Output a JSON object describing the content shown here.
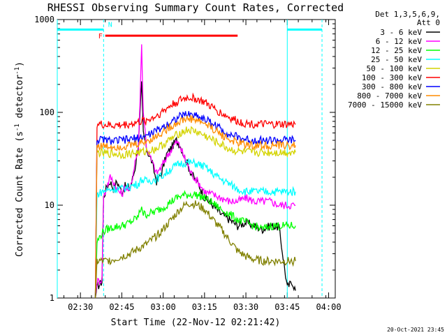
{
  "chart_data": {
    "type": "line",
    "title": "RHESSI Observing Summary Count Rates, Corrected",
    "xlabel": "Start Time (22-Nov-12 02:21:42)",
    "ylabel_main": "Corrected Count Rate (s",
    "ylabel_sup1": "-1",
    "ylabel_mid": " detector",
    "ylabel_sup2": "-1",
    "ylabel_end": ")",
    "yscale": "log",
    "ylim": [
      1,
      1000
    ],
    "xlim": [
      2.36,
      4.04
    ],
    "y_ticks": [
      {
        "v": 1,
        "label": "1"
      },
      {
        "v": 10,
        "label": "10"
      },
      {
        "v": 100,
        "label": "100"
      },
      {
        "v": 1000,
        "label": "1000"
      }
    ],
    "x_ticks": [
      {
        "v": 2.5,
        "label": "02:30"
      },
      {
        "v": 2.75,
        "label": "02:45"
      },
      {
        "v": 3.0,
        "label": "03:00"
      },
      {
        "v": 3.25,
        "label": "03:15"
      },
      {
        "v": 3.5,
        "label": "03:30"
      },
      {
        "v": 3.75,
        "label": "03:45"
      },
      {
        "v": 4.0,
        "label": "04:00"
      }
    ],
    "legend_header": [
      "Det 1,3,5,6,9,",
      "Att 0"
    ],
    "legend_position": "top-right",
    "series": [
      {
        "name": "3 - 6 keV",
        "color": "#000000",
        "points": [
          [
            2.59,
            1.0
          ],
          [
            2.6,
            1.3
          ],
          [
            2.63,
            1.5
          ],
          [
            2.64,
            12
          ],
          [
            2.66,
            16
          ],
          [
            2.68,
            18
          ],
          [
            2.7,
            15
          ],
          [
            2.72,
            18
          ],
          [
            2.75,
            14
          ],
          [
            2.77,
            16
          ],
          [
            2.8,
            15
          ],
          [
            2.83,
            25
          ],
          [
            2.85,
            45
          ],
          [
            2.87,
            200
          ],
          [
            2.88,
            60
          ],
          [
            2.9,
            40
          ],
          [
            2.93,
            30
          ],
          [
            2.96,
            18
          ],
          [
            2.99,
            22
          ],
          [
            3.02,
            35
          ],
          [
            3.05,
            42
          ],
          [
            3.08,
            50
          ],
          [
            3.1,
            45
          ],
          [
            3.13,
            33
          ],
          [
            3.17,
            22
          ],
          [
            3.22,
            16
          ],
          [
            3.25,
            12
          ],
          [
            3.3,
            10
          ],
          [
            3.35,
            8
          ],
          [
            3.4,
            7
          ],
          [
            3.45,
            6
          ],
          [
            3.5,
            6.5
          ],
          [
            3.55,
            6
          ],
          [
            3.6,
            5.5
          ],
          [
            3.65,
            6
          ],
          [
            3.7,
            5.8
          ],
          [
            3.75,
            1.3
          ],
          [
            3.78,
            1.5
          ],
          [
            3.8,
            1.2
          ]
        ]
      },
      {
        "name": "6 - 12 keV",
        "color": "#ff00ff",
        "points": [
          [
            2.59,
            1.0
          ],
          [
            2.6,
            1.5
          ],
          [
            2.63,
            1.6
          ],
          [
            2.64,
            12
          ],
          [
            2.66,
            16
          ],
          [
            2.68,
            20
          ],
          [
            2.7,
            18
          ],
          [
            2.72,
            15
          ],
          [
            2.75,
            13
          ],
          [
            2.77,
            16
          ],
          [
            2.8,
            14
          ],
          [
            2.83,
            30
          ],
          [
            2.85,
            38
          ],
          [
            2.87,
            530
          ],
          [
            2.88,
            100
          ],
          [
            2.9,
            42
          ],
          [
            2.93,
            30
          ],
          [
            2.96,
            22
          ],
          [
            2.99,
            26
          ],
          [
            3.02,
            33
          ],
          [
            3.05,
            40
          ],
          [
            3.08,
            48
          ],
          [
            3.1,
            44
          ],
          [
            3.13,
            32
          ],
          [
            3.17,
            22
          ],
          [
            3.22,
            17
          ],
          [
            3.25,
            14
          ],
          [
            3.3,
            13
          ],
          [
            3.35,
            12
          ],
          [
            3.4,
            11
          ],
          [
            3.45,
            11
          ],
          [
            3.5,
            12
          ],
          [
            3.55,
            11
          ],
          [
            3.6,
            11
          ],
          [
            3.65,
            11
          ],
          [
            3.7,
            10
          ],
          [
            3.8,
            10
          ]
        ]
      },
      {
        "name": "12 - 25 keV",
        "color": "#00ff00",
        "points": [
          [
            2.59,
            1.0
          ],
          [
            2.6,
            4
          ],
          [
            2.63,
            5
          ],
          [
            2.64,
            5.2
          ],
          [
            2.66,
            5.5
          ],
          [
            2.7,
            5.8
          ],
          [
            2.75,
            6
          ],
          [
            2.8,
            6.5
          ],
          [
            2.85,
            7.5
          ],
          [
            2.87,
            10
          ],
          [
            2.88,
            8
          ],
          [
            2.9,
            8
          ],
          [
            2.95,
            8.5
          ],
          [
            3.0,
            9.5
          ],
          [
            3.05,
            11
          ],
          [
            3.1,
            12.5
          ],
          [
            3.15,
            13
          ],
          [
            3.2,
            13
          ],
          [
            3.25,
            12
          ],
          [
            3.3,
            10.5
          ],
          [
            3.35,
            9
          ],
          [
            3.4,
            8
          ],
          [
            3.45,
            7
          ],
          [
            3.5,
            6.5
          ],
          [
            3.55,
            6
          ],
          [
            3.6,
            5.5
          ],
          [
            3.65,
            6
          ],
          [
            3.7,
            6
          ],
          [
            3.8,
            6
          ]
        ]
      },
      {
        "name": "25 - 50 keV",
        "color": "#00ffff",
        "points": [
          [
            2.59,
            1.0
          ],
          [
            2.6,
            13
          ],
          [
            2.63,
            14
          ],
          [
            2.66,
            14.5
          ],
          [
            2.7,
            15
          ],
          [
            2.75,
            15
          ],
          [
            2.8,
            16
          ],
          [
            2.85,
            17
          ],
          [
            2.87,
            19
          ],
          [
            2.9,
            18
          ],
          [
            2.95,
            19
          ],
          [
            3.0,
            21
          ],
          [
            3.05,
            25
          ],
          [
            3.1,
            28
          ],
          [
            3.15,
            29
          ],
          [
            3.2,
            28
          ],
          [
            3.25,
            26
          ],
          [
            3.3,
            22
          ],
          [
            3.35,
            19
          ],
          [
            3.4,
            17
          ],
          [
            3.45,
            15
          ],
          [
            3.5,
            14
          ],
          [
            3.55,
            14
          ],
          [
            3.6,
            14
          ],
          [
            3.65,
            14
          ],
          [
            3.7,
            14
          ],
          [
            3.8,
            14
          ]
        ]
      },
      {
        "name": "50 - 100 keV",
        "color": "#d4d400",
        "points": [
          [
            2.59,
            1.0
          ],
          [
            2.6,
            37
          ],
          [
            2.65,
            36
          ],
          [
            2.7,
            36
          ],
          [
            2.75,
            35
          ],
          [
            2.8,
            36
          ],
          [
            2.85,
            37
          ],
          [
            2.9,
            38
          ],
          [
            2.95,
            40
          ],
          [
            3.0,
            45
          ],
          [
            3.05,
            52
          ],
          [
            3.1,
            60
          ],
          [
            3.15,
            65
          ],
          [
            3.2,
            62
          ],
          [
            3.25,
            56
          ],
          [
            3.3,
            50
          ],
          [
            3.35,
            45
          ],
          [
            3.4,
            40
          ],
          [
            3.45,
            38
          ],
          [
            3.5,
            37
          ],
          [
            3.55,
            37
          ],
          [
            3.6,
            37
          ],
          [
            3.65,
            37
          ],
          [
            3.7,
            37
          ],
          [
            3.8,
            37
          ]
        ]
      },
      {
        "name": "100 - 300 keV",
        "color": "#ff0000",
        "points": [
          [
            2.59,
            1.0
          ],
          [
            2.6,
            75
          ],
          [
            2.65,
            73
          ],
          [
            2.7,
            72
          ],
          [
            2.75,
            73
          ],
          [
            2.8,
            75
          ],
          [
            2.85,
            78
          ],
          [
            2.9,
            82
          ],
          [
            2.95,
            90
          ],
          [
            3.0,
            103
          ],
          [
            3.05,
            120
          ],
          [
            3.1,
            135
          ],
          [
            3.15,
            145
          ],
          [
            3.2,
            140
          ],
          [
            3.25,
            128
          ],
          [
            3.3,
            112
          ],
          [
            3.35,
            98
          ],
          [
            3.4,
            88
          ],
          [
            3.45,
            80
          ],
          [
            3.5,
            76
          ],
          [
            3.55,
            75
          ],
          [
            3.6,
            74
          ],
          [
            3.65,
            74
          ],
          [
            3.7,
            74
          ],
          [
            3.8,
            74
          ]
        ]
      },
      {
        "name": "300 - 800 keV",
        "color": "#0000ff",
        "points": [
          [
            2.59,
            1.0
          ],
          [
            2.6,
            51
          ],
          [
            2.65,
            50
          ],
          [
            2.7,
            49
          ],
          [
            2.75,
            50
          ],
          [
            2.8,
            51
          ],
          [
            2.85,
            53
          ],
          [
            2.9,
            56
          ],
          [
            2.95,
            62
          ],
          [
            3.0,
            70
          ],
          [
            3.05,
            80
          ],
          [
            3.1,
            90
          ],
          [
            3.15,
            96
          ],
          [
            3.2,
            93
          ],
          [
            3.25,
            85
          ],
          [
            3.3,
            76
          ],
          [
            3.35,
            66
          ],
          [
            3.4,
            58
          ],
          [
            3.45,
            54
          ],
          [
            3.5,
            51
          ],
          [
            3.55,
            50
          ],
          [
            3.6,
            50
          ],
          [
            3.65,
            50
          ],
          [
            3.7,
            50
          ],
          [
            3.8,
            50
          ]
        ]
      },
      {
        "name": "800 - 7000 keV",
        "color": "#ff8c00",
        "points": [
          [
            2.59,
            1.0
          ],
          [
            2.6,
            44
          ],
          [
            2.65,
            43
          ],
          [
            2.7,
            43
          ],
          [
            2.75,
            43
          ],
          [
            2.8,
            44
          ],
          [
            2.85,
            46
          ],
          [
            2.9,
            49
          ],
          [
            2.95,
            54
          ],
          [
            3.0,
            62
          ],
          [
            3.05,
            71
          ],
          [
            3.1,
            80
          ],
          [
            3.15,
            86
          ],
          [
            3.2,
            83
          ],
          [
            3.25,
            76
          ],
          [
            3.3,
            67
          ],
          [
            3.35,
            58
          ],
          [
            3.4,
            51
          ],
          [
            3.45,
            47
          ],
          [
            3.5,
            45
          ],
          [
            3.55,
            44
          ],
          [
            3.6,
            44
          ],
          [
            3.65,
            44
          ],
          [
            3.7,
            44
          ],
          [
            3.8,
            44
          ]
        ]
      },
      {
        "name": "7000 - 15000 keV",
        "color": "#808000",
        "points": [
          [
            2.59,
            1.0
          ],
          [
            2.6,
            2.5
          ],
          [
            2.65,
            2.5
          ],
          [
            2.7,
            2.6
          ],
          [
            2.75,
            2.8
          ],
          [
            2.8,
            3.0
          ],
          [
            2.85,
            3.4
          ],
          [
            2.9,
            3.8
          ],
          [
            2.95,
            4.5
          ],
          [
            3.0,
            5.5
          ],
          [
            3.05,
            7
          ],
          [
            3.1,
            9
          ],
          [
            3.15,
            10.5
          ],
          [
            3.2,
            10.2
          ],
          [
            3.25,
            9
          ],
          [
            3.3,
            7
          ],
          [
            3.35,
            5.5
          ],
          [
            3.4,
            4.2
          ],
          [
            3.45,
            3.2
          ],
          [
            3.5,
            2.8
          ],
          [
            3.55,
            2.6
          ],
          [
            3.6,
            2.5
          ],
          [
            3.65,
            2.5
          ],
          [
            3.7,
            2.5
          ],
          [
            3.8,
            2.5
          ]
        ]
      }
    ],
    "attenuator_boxes": [
      {
        "x0": 2.36,
        "x1": 2.64,
        "y": 780
      },
      {
        "x0": 3.75,
        "x1": 3.96,
        "y": 780
      }
    ],
    "flare_flag": {
      "label": "F",
      "x0": 2.65,
      "x1": 3.45,
      "y": 670,
      "color": "#ff0000"
    },
    "night_flag": {
      "label": "N",
      "x": 2.65,
      "y": 880,
      "color": "#00ffff"
    },
    "timestamp": "20-Oct-2021 23:45"
  }
}
